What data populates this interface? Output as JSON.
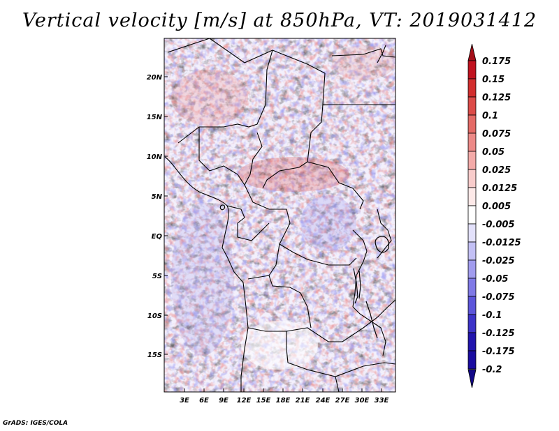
{
  "title": "Vertical velocity [m/s] at 850hPa, VT: 2019031412",
  "credit": "GrADS: IGES/COLA",
  "map": {
    "lat_labels": [
      "20N",
      "15N",
      "10N",
      "5N",
      "EQ",
      "5S",
      "10S",
      "15S"
    ],
    "lon_labels": [
      "3E",
      "6E",
      "9E",
      "12E",
      "15E",
      "18E",
      "21E",
      "24E",
      "27E",
      "30E",
      "33E"
    ]
  },
  "colorbar": {
    "levels": [
      "0.175",
      "0.15",
      "0.125",
      "0.1",
      "0.075",
      "0.05",
      "0.025",
      "0.0125",
      "0.005",
      "-0.005",
      "-0.0125",
      "-0.025",
      "-0.05",
      "-0.075",
      "-0.1",
      "-0.125",
      "-0.175",
      "-0.2"
    ],
    "colors": [
      "#a40f19",
      "#c1121f",
      "#d22e2e",
      "#dc4b48",
      "#e46a66",
      "#ec8987",
      "#f3aaa8",
      "#f8cccb",
      "#fde9e8",
      "#ffffff",
      "#e3e1fb",
      "#c3c0f5",
      "#a19cee",
      "#7f79e6",
      "#5c55da",
      "#3c33c8",
      "#2114ad",
      "#1a0ca0",
      "#120888"
    ]
  }
}
